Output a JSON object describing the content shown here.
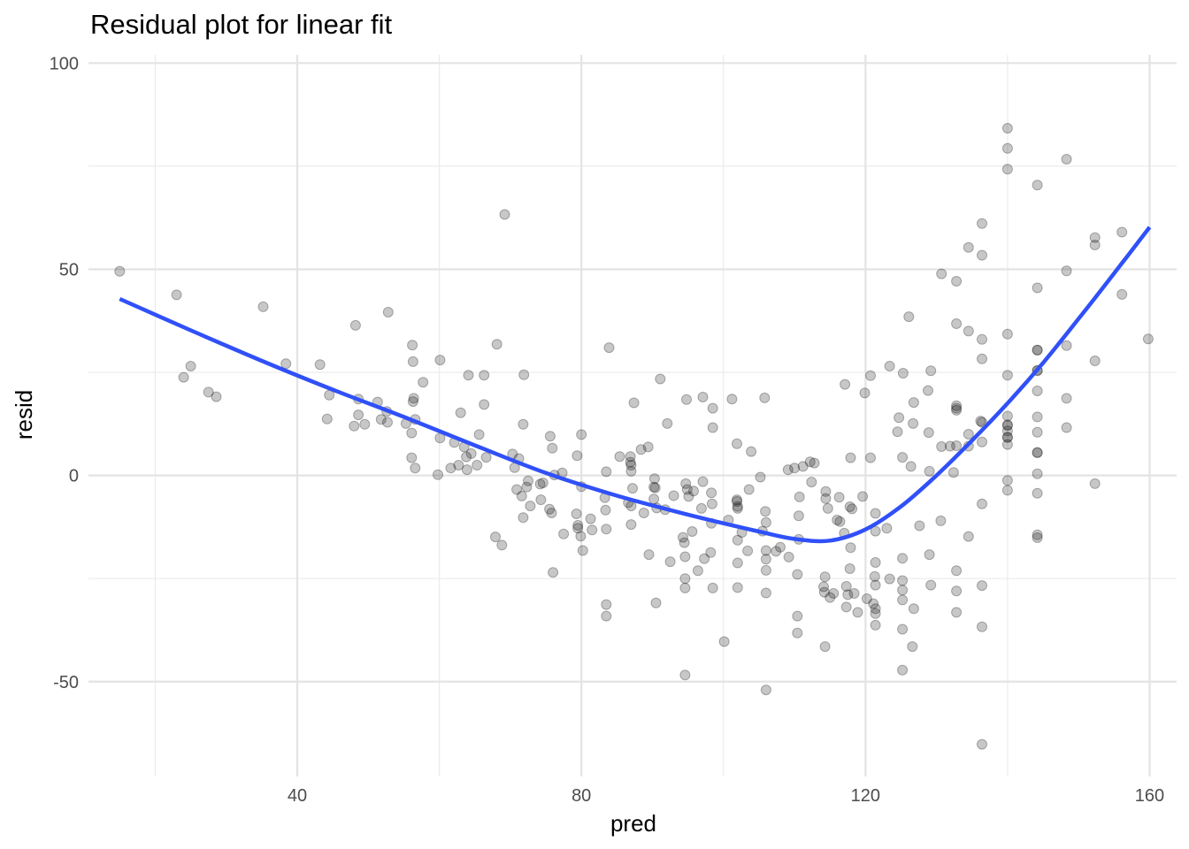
{
  "chart_data": {
    "type": "scatter",
    "title": "Residual plot for linear fit",
    "xlabel": "pred",
    "ylabel": "resid",
    "xlim": [
      10.6,
      163.8
    ],
    "ylim": [
      -73,
      102
    ],
    "x_ticks": [
      40,
      80,
      120,
      160
    ],
    "y_ticks": [
      -50,
      0,
      50,
      100
    ],
    "grid": true,
    "point_color": "#000000",
    "point_opacity": 0.22,
    "line_color": "#3050F8",
    "points": [
      [
        15,
        49.5
      ],
      [
        23,
        43.8
      ],
      [
        24,
        23.8
      ],
      [
        25,
        26.5
      ],
      [
        27.5,
        20.2
      ],
      [
        28.6,
        19.1
      ],
      [
        35.2,
        40.9
      ],
      [
        38.4,
        27.1
      ],
      [
        43.2,
        26.9
      ],
      [
        44.2,
        13.7
      ],
      [
        44.5,
        19.5
      ],
      [
        48,
        12
      ],
      [
        48.2,
        36.4
      ],
      [
        48.6,
        18.5
      ],
      [
        48.6,
        14.7
      ],
      [
        49.5,
        12.4
      ],
      [
        51.3,
        17.8
      ],
      [
        51.8,
        13.6
      ],
      [
        52.6,
        15.5
      ],
      [
        52.7,
        12.9
      ],
      [
        52.8,
        39.6
      ],
      [
        55.3,
        12.6
      ],
      [
        56.1,
        4.3
      ],
      [
        56.1,
        10.3
      ],
      [
        56.2,
        31.6
      ],
      [
        56.3,
        17.9
      ],
      [
        56.3,
        27.6
      ],
      [
        56.4,
        18.7
      ],
      [
        56.6,
        13.6
      ],
      [
        56.6,
        1.8
      ],
      [
        57.7,
        22.6
      ],
      [
        59.8,
        0.2
      ],
      [
        60.1,
        9.1
      ],
      [
        60.1,
        28
      ],
      [
        61.6,
        1.8
      ],
      [
        62.1,
        8
      ],
      [
        62.7,
        2.5
      ],
      [
        63,
        15.2
      ],
      [
        63.5,
        6.9
      ],
      [
        63.8,
        4.5
      ],
      [
        63.9,
        1.4
      ],
      [
        64.1,
        24.3
      ],
      [
        64.5,
        5.3
      ],
      [
        65.3,
        2.5
      ],
      [
        65.6,
        9.9
      ],
      [
        66.3,
        24.3
      ],
      [
        66.3,
        17.2
      ],
      [
        66.6,
        4.4
      ],
      [
        67.9,
        -14.9
      ],
      [
        68.1,
        31.8
      ],
      [
        68.8,
        -16.9
      ],
      [
        69.2,
        63.3
      ],
      [
        70.3,
        5.2
      ],
      [
        70.6,
        1.9
      ],
      [
        70.9,
        -3.4
      ],
      [
        71.2,
        4.1
      ],
      [
        71.6,
        -5
      ],
      [
        71.8,
        12.4
      ],
      [
        71.8,
        -10.2
      ],
      [
        71.9,
        24.4
      ],
      [
        72.3,
        -2.8
      ],
      [
        72.5,
        -1.3
      ],
      [
        72.8,
        -7.4
      ],
      [
        74.2,
        -2.1
      ],
      [
        74.3,
        -5.9
      ],
      [
        74.6,
        -1.8
      ],
      [
        75.5,
        -8.2
      ],
      [
        75.6,
        9.5
      ],
      [
        75.8,
        -9.1
      ],
      [
        75.9,
        6.6
      ],
      [
        76,
        -23.5
      ],
      [
        76.2,
        0.1
      ],
      [
        77.3,
        0.6
      ],
      [
        77.5,
        -14.2
      ],
      [
        79.3,
        -9.3
      ],
      [
        79.4,
        4.8
      ],
      [
        79.5,
        -12.1
      ],
      [
        79.5,
        -12.8
      ],
      [
        79.9,
        -14.7
      ],
      [
        80,
        -2.7
      ],
      [
        80,
        9.9
      ],
      [
        80.2,
        -18.2
      ],
      [
        81.3,
        -10.5
      ],
      [
        81.5,
        -13.2
      ],
      [
        83.3,
        -5.4
      ],
      [
        83.4,
        -8.4
      ],
      [
        83.5,
        -13
      ],
      [
        83.5,
        0.9
      ],
      [
        83.5,
        -31.3
      ],
      [
        83.5,
        -34.1
      ],
      [
        83.9,
        31
      ],
      [
        85.4,
        4.6
      ],
      [
        86.6,
        -6.6
      ],
      [
        86.9,
        4.6
      ],
      [
        86.9,
        3.2
      ],
      [
        87,
        -7.4
      ],
      [
        87,
        -11.9
      ],
      [
        87,
        1
      ],
      [
        87,
        2.5
      ],
      [
        87.2,
        -3.1
      ],
      [
        87.4,
        17.6
      ],
      [
        88.4,
        6.3
      ],
      [
        88.8,
        -9.1
      ],
      [
        89.4,
        6.9
      ],
      [
        89.5,
        -19.2
      ],
      [
        90.2,
        -2.8
      ],
      [
        90.2,
        -5.7
      ],
      [
        90.3,
        -0.8
      ],
      [
        90.4,
        -3
      ],
      [
        90.5,
        -30.9
      ],
      [
        90.6,
        -7.9
      ],
      [
        91.1,
        23.4
      ],
      [
        91.8,
        -8.3
      ],
      [
        92.1,
        12.6
      ],
      [
        92.5,
        -20.9
      ],
      [
        93,
        -4.9
      ],
      [
        94.3,
        -15
      ],
      [
        94.5,
        -16.3
      ],
      [
        94.6,
        -19.7
      ],
      [
        94.6,
        -25
      ],
      [
        94.6,
        -27.3
      ],
      [
        94.6,
        -48.4
      ],
      [
        94.7,
        -2
      ],
      [
        94.8,
        18.4
      ],
      [
        94.9,
        -3.4
      ],
      [
        95.1,
        -5.1
      ],
      [
        95.6,
        -13.6
      ],
      [
        95.8,
        -3.8
      ],
      [
        96.4,
        -23.1
      ],
      [
        96.9,
        -8
      ],
      [
        97.1,
        19
      ],
      [
        97.1,
        -1.5
      ],
      [
        97.3,
        -20.2
      ],
      [
        98.2,
        -18.7
      ],
      [
        98.3,
        -4.2
      ],
      [
        98.3,
        -11.6
      ],
      [
        98.4,
        -6.9
      ],
      [
        98.5,
        -27.3
      ],
      [
        98.5,
        11.6
      ],
      [
        98.5,
        16.3
      ],
      [
        100.1,
        -40.3
      ],
      [
        100.7,
        -10.8
      ],
      [
        101.2,
        18.5
      ],
      [
        101.9,
        7.7
      ],
      [
        101.9,
        -5.9
      ],
      [
        101.9,
        -6.3
      ],
      [
        102.0,
        -7.5
      ],
      [
        102.0,
        -8.0
      ],
      [
        102.0,
        -15.7
      ],
      [
        102.0,
        -21.2
      ],
      [
        102.0,
        -27.2
      ],
      [
        102.6,
        -13.8
      ],
      [
        103.4,
        -18.3
      ],
      [
        103.6,
        -3.4
      ],
      [
        103.9,
        5.8
      ],
      [
        105.2,
        -0.4
      ],
      [
        105.5,
        -13.5
      ],
      [
        105.8,
        18.8
      ],
      [
        105.9,
        -8.7
      ],
      [
        106.0,
        -11.4
      ],
      [
        106.0,
        -18.2
      ],
      [
        106.0,
        -20.3
      ],
      [
        106.0,
        -23
      ],
      [
        106.0,
        -28.5
      ],
      [
        106.0,
        -52
      ],
      [
        107.4,
        -18.4
      ],
      [
        108.0,
        -17.4
      ],
      [
        109.1,
        1.4
      ],
      [
        109.2,
        -19.8
      ],
      [
        110.0,
        1.8
      ],
      [
        110.4,
        -24.0
      ],
      [
        110.4,
        -34.1
      ],
      [
        110.4,
        -38.2
      ],
      [
        110.6,
        -9.8
      ],
      [
        110.6,
        -15.5
      ],
      [
        110.7,
        -5.2
      ],
      [
        111.2,
        2.2
      ],
      [
        112.2,
        3.3
      ],
      [
        112.4,
        -1.6
      ],
      [
        112.8,
        3
      ],
      [
        114.1,
        -27.0
      ],
      [
        114.2,
        -28.3
      ],
      [
        114.3,
        -41.5
      ],
      [
        114.3,
        -24.6
      ],
      [
        114.4,
        -3.9
      ],
      [
        114.4,
        -5.6
      ],
      [
        114.7,
        -8
      ],
      [
        115.0,
        -29.6
      ],
      [
        115.5,
        -28.6
      ],
      [
        116.0,
        -10.8
      ],
      [
        116.3,
        -5.3
      ],
      [
        116.4,
        -11.2
      ],
      [
        117.0,
        -14
      ],
      [
        117.1,
        22.1
      ],
      [
        117.3,
        -26.9
      ],
      [
        117.3,
        -31.9
      ],
      [
        117.5,
        -28.9
      ],
      [
        117.8,
        -7.6
      ],
      [
        117.8,
        -22.6
      ],
      [
        117.9,
        -17.5
      ],
      [
        117.9,
        4.3
      ],
      [
        118.1,
        -8.1
      ],
      [
        118.4,
        -28.6
      ],
      [
        118.9,
        -33.2
      ],
      [
        119.6,
        -5.1
      ],
      [
        119.9,
        20
      ],
      [
        120.2,
        -29.9
      ],
      [
        120.7,
        24.2
      ],
      [
        120.7,
        4.3
      ],
      [
        121.1,
        -31.1
      ],
      [
        121.3,
        -24.5
      ],
      [
        121.4,
        -9.2
      ],
      [
        121.4,
        -21.1
      ],
      [
        121.4,
        -26.6
      ],
      [
        121.4,
        -32.3
      ],
      [
        121.4,
        -33.5
      ],
      [
        121.4,
        -36.3
      ],
      [
        121.4,
        -13.5
      ],
      [
        123.0,
        -12.8
      ],
      [
        123.4,
        26.5
      ],
      [
        123.4,
        -25.1
      ],
      [
        124.5,
        10.6
      ],
      [
        124.7,
        14
      ],
      [
        125.2,
        4.4
      ],
      [
        125.2,
        -20.1
      ],
      [
        125.2,
        -25.5
      ],
      [
        125.2,
        -27.8
      ],
      [
        125.2,
        -30.2
      ],
      [
        125.2,
        -37.3
      ],
      [
        125.2,
        -47.2
      ],
      [
        125.3,
        24.8
      ],
      [
        126.1,
        38.5
      ],
      [
        126.4,
        2.2
      ],
      [
        126.6,
        -41.5
      ],
      [
        126.7,
        12.6
      ],
      [
        126.8,
        -32.3
      ],
      [
        126.8,
        17.7
      ],
      [
        127.6,
        -12.2
      ],
      [
        128.8,
        20.6
      ],
      [
        128.9,
        10.4
      ],
      [
        129.0,
        1
      ],
      [
        129.0,
        -19.2
      ],
      [
        129.2,
        25.4
      ],
      [
        129.2,
        -26.6
      ],
      [
        130.6,
        -11
      ],
      [
        130.7,
        48.9
      ],
      [
        130.7,
        7
      ],
      [
        131.9,
        7.1
      ],
      [
        132.4,
        0.7
      ],
      [
        132.8,
        16.3
      ],
      [
        132.8,
        16.9
      ],
      [
        132.8,
        15.8
      ],
      [
        132.8,
        36.8
      ],
      [
        132.8,
        47.1
      ],
      [
        132.8,
        7.2
      ],
      [
        132.8,
        -23.1
      ],
      [
        132.8,
        -28
      ],
      [
        132.8,
        -33.2
      ],
      [
        134.5,
        55.3
      ],
      [
        134.5,
        -14.8
      ],
      [
        134.5,
        10
      ],
      [
        134.5,
        7.1
      ],
      [
        134.5,
        35
      ],
      [
        136.2,
        13.2
      ],
      [
        136.4,
        12.9
      ],
      [
        136.4,
        8.1
      ],
      [
        136.4,
        33
      ],
      [
        136.4,
        28.3
      ],
      [
        136.4,
        53.4
      ],
      [
        136.4,
        61.1
      ],
      [
        136.4,
        -6.9
      ],
      [
        136.4,
        -26.7
      ],
      [
        136.4,
        -36.7
      ],
      [
        136.4,
        -65.2
      ],
      [
        140.0,
        84.2
      ],
      [
        140.0,
        79.3
      ],
      [
        140.0,
        74.3
      ],
      [
        140.0,
        34.3
      ],
      [
        140.0,
        24.3
      ],
      [
        140.0,
        14.4
      ],
      [
        140.0,
        12.1
      ],
      [
        140.0,
        10.8
      ],
      [
        140.0,
        9.2
      ],
      [
        140.0,
        7.5
      ],
      [
        140.0,
        -1.2
      ],
      [
        140.0,
        -3.6
      ],
      [
        140.0,
        9.3
      ],
      [
        140.0,
        12.3
      ],
      [
        144.2,
        70.4
      ],
      [
        144.2,
        45.5
      ],
      [
        144.2,
        30.4
      ],
      [
        144.2,
        25.4
      ],
      [
        144.2,
        20.5
      ],
      [
        144.2,
        14.2
      ],
      [
        144.2,
        10.5
      ],
      [
        144.2,
        5.6
      ],
      [
        144.2,
        0.4
      ],
      [
        144.2,
        -4.3
      ],
      [
        144.2,
        -14.4
      ],
      [
        144.2,
        -15.1
      ],
      [
        144.2,
        30.4
      ],
      [
        144.2,
        5.5
      ],
      [
        144.2,
        25.5
      ],
      [
        148.3,
        76.7
      ],
      [
        148.3,
        49.6
      ],
      [
        148.3,
        31.5
      ],
      [
        148.3,
        18.7
      ],
      [
        148.3,
        11.6
      ],
      [
        152.3,
        57.7
      ],
      [
        152.3,
        55.9
      ],
      [
        152.3,
        27.8
      ],
      [
        152.3,
        -2
      ],
      [
        156.1,
        59
      ],
      [
        156.1,
        43.9
      ],
      [
        159.8,
        33.1
      ]
    ],
    "smooth_line": [
      [
        15,
        42.8
      ],
      [
        25,
        35.2
      ],
      [
        35,
        27.8
      ],
      [
        45,
        20.8
      ],
      [
        55,
        14.2
      ],
      [
        65,
        7.3
      ],
      [
        75,
        0.6
      ],
      [
        85,
        -4.9
      ],
      [
        95,
        -9.5
      ],
      [
        105,
        -13.6
      ],
      [
        110,
        -15.4
      ],
      [
        115,
        -15.8
      ],
      [
        120,
        -13.1
      ],
      [
        125,
        -7.5
      ],
      [
        130,
        0
      ],
      [
        135,
        8.5
      ],
      [
        140,
        17.5
      ],
      [
        145,
        27.3
      ],
      [
        150,
        38
      ],
      [
        155,
        49
      ],
      [
        160,
        60.2
      ]
    ]
  }
}
